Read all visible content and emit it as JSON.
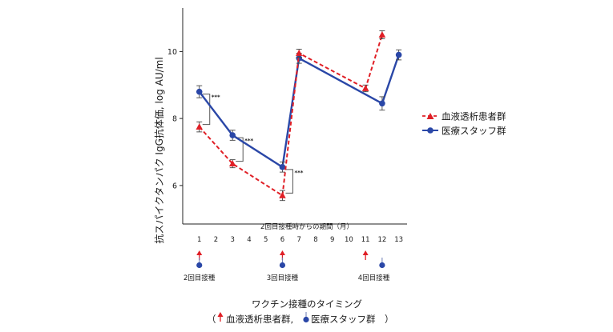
{
  "colors": {
    "dialysis": "#e01f26",
    "staff": "#2a47a7",
    "axis": "#222222",
    "bracket": "#555555"
  },
  "chart_data": {
    "type": "line",
    "ylabel": "抗スパイクタンパク IgG抗体価, log AU/ml",
    "xlabel": "2回目接種時からの期間（月）",
    "x_ticks": [
      1,
      2,
      3,
      4,
      5,
      6,
      7,
      8,
      9,
      10,
      11,
      12,
      13
    ],
    "xlim": [
      0,
      13.5
    ],
    "y_ticks": [
      6,
      8,
      10
    ],
    "ylim": [
      4.85,
      11.3
    ],
    "series": [
      {
        "name": "血液透析患者群",
        "style": "dashed",
        "marker": "triangle",
        "points": [
          {
            "x": 1,
            "y": 7.75,
            "err": 0.15
          },
          {
            "x": 3,
            "y": 6.65,
            "err": 0.12
          },
          {
            "x": 6,
            "y": 5.7,
            "err": 0.15
          },
          {
            "x": 7,
            "y": 9.95,
            "err": 0.12
          },
          {
            "x": 11,
            "y": 8.9,
            "err": 0.1
          },
          {
            "x": 12,
            "y": 10.5,
            "err": 0.12
          }
        ]
      },
      {
        "name": "医療スタッフ群",
        "style": "solid",
        "marker": "circle",
        "points": [
          {
            "x": 1,
            "y": 8.8,
            "err": 0.18
          },
          {
            "x": 3,
            "y": 7.5,
            "err": 0.15
          },
          {
            "x": 6,
            "y": 6.55,
            "err": 0.15
          },
          {
            "x": 7,
            "y": 9.8,
            "err": 0.15
          },
          {
            "x": 12,
            "y": 8.45,
            "err": 0.2
          },
          {
            "x": 13,
            "y": 9.9,
            "err": 0.15
          }
        ]
      }
    ],
    "significance": [
      {
        "x": 1,
        "label": "***"
      },
      {
        "x": 3,
        "label": "***"
      },
      {
        "x": 6,
        "label": "***"
      }
    ],
    "legend": [
      {
        "label": "血液透析患者群",
        "series": 0
      },
      {
        "label": "医療スタッフ群",
        "series": 1
      }
    ]
  },
  "vaccination": {
    "groups": [
      {
        "label": "2回目接種",
        "x": 1,
        "dialysis": true,
        "staff": true
      },
      {
        "label": "3回目接種",
        "x": 6,
        "dialysis": true,
        "staff": true
      },
      {
        "label": "4回目接種",
        "x": 11.5,
        "dialysis_x": 11,
        "staff_x": 12,
        "dialysis": true,
        "staff": true
      }
    ],
    "caption_title": "ワクチン接種のタイミング",
    "caption_open": "（",
    "caption_dialysis": "血液透析患者群,",
    "caption_staff": "医療スタッフ群",
    "caption_close": "）"
  }
}
